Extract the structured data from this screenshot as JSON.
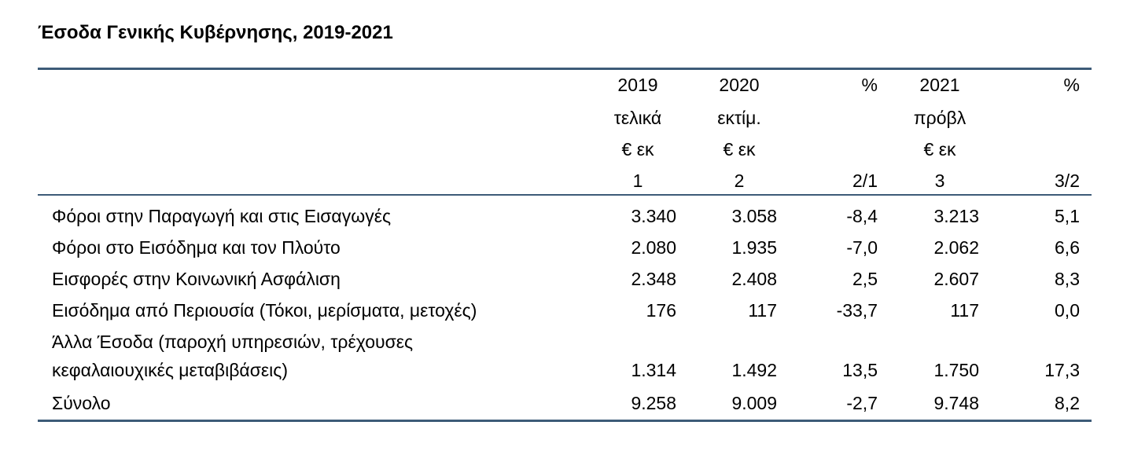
{
  "title": "Έσοδα Γενικής Κυβέρνησης, 2019-2021",
  "table": {
    "header": [
      {
        "top": "2019",
        "sub": "τελικά",
        "unit": "€ εκ",
        "num": "1"
      },
      {
        "top": "2020",
        "sub": "εκτίμ.",
        "unit": "€ εκ",
        "num": "2"
      },
      {
        "top": "%",
        "num": "2/1"
      },
      {
        "top": "2021",
        "sub": "πρόβλ",
        "unit": "€ εκ",
        "num": "3"
      },
      {
        "top": "%",
        "num": "3/2"
      }
    ],
    "rows": [
      {
        "label": [
          "Φόροι στην Παραγωγή και στις Εισαγωγές"
        ],
        "values": [
          "3.340",
          "3.058",
          "-8,4",
          "3.213",
          "5,1"
        ]
      },
      {
        "label": [
          "Φόροι στο Εισόδημα και τον Πλούτο"
        ],
        "values": [
          "2.080",
          "1.935",
          "-7,0",
          "2.062",
          "6,6"
        ]
      },
      {
        "label": [
          "Εισφορές στην Κοινωνική Ασφάλιση"
        ],
        "values": [
          "2.348",
          "2.408",
          "2,5",
          "2.607",
          "8,3"
        ]
      },
      {
        "label": [
          "Εισόδημα από Περιουσία (Τόκοι, μερίσματα, μετοχές)"
        ],
        "values": [
          "176",
          "117",
          "-33,7",
          "117",
          "0,0"
        ]
      },
      {
        "label": [
          "Άλλα Έσοδα (παροχή υπηρεσιών, τρέχουσες",
          "κεφαλαιουχικές μεταβιβάσεις)"
        ],
        "values": [
          "1.314",
          "1.492",
          "13,5",
          "1.750",
          "17,3"
        ]
      },
      {
        "label": [
          "Σύνολο"
        ],
        "values": [
          "9.258",
          "9.009",
          "-2,7",
          "9.748",
          "8,2"
        ]
      }
    ]
  }
}
